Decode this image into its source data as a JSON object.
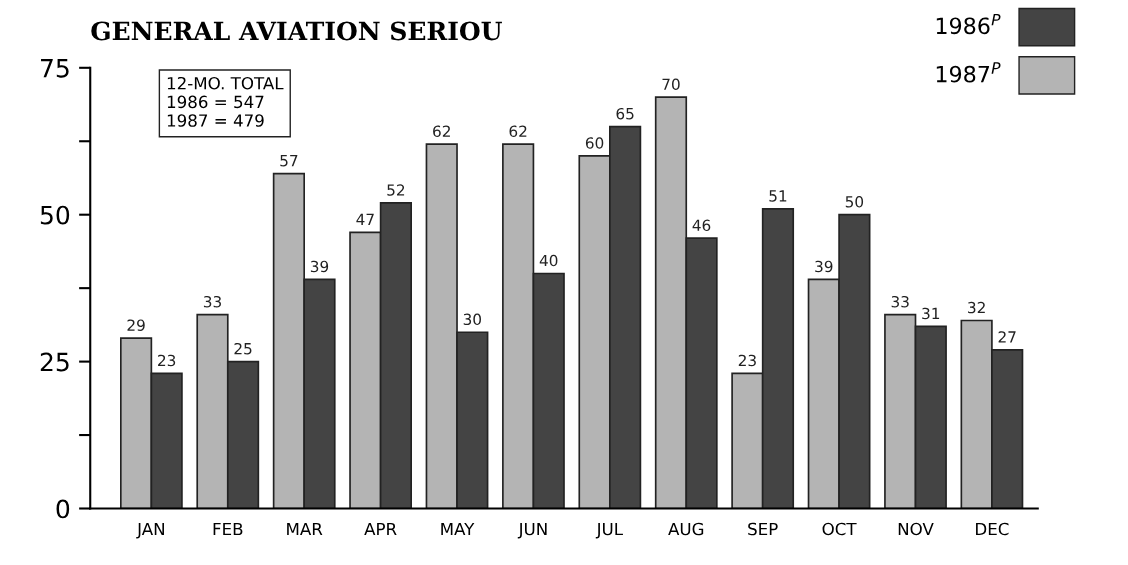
{
  "chart_data": {
    "type": "bar",
    "title": "GENERAL AVIATION SERIOU",
    "categories": [
      "JAN",
      "FEB",
      "MAR",
      "APR",
      "MAY",
      "JUN",
      "JUL",
      "AUG",
      "SEP",
      "OCT",
      "NOV",
      "DEC"
    ],
    "series": [
      {
        "name": "1987$^{P}$",
        "color": "#b4b4b4",
        "values": [
          29,
          33,
          57,
          47,
          62,
          62,
          60,
          70,
          23,
          39,
          33,
          32
        ]
      },
      {
        "name": "1986$^{P}$",
        "color": "#444444",
        "values": [
          23,
          25,
          39,
          52,
          30,
          40,
          65,
          46,
          51,
          50,
          31,
          27
        ]
      }
    ],
    "ylim": [
      0,
      75
    ],
    "yticks": [
      0,
      {
        "value": 12.5,
        "label": null
      },
      25,
      {
        "value": 37.5,
        "label": null
      },
      50,
      {
        "value": 62.5,
        "label": null
      },
      75
    ],
    "annotations": [
      "12-MO. TOTAL\n1986 = 547\n1987 = 479"
    ],
    "data_labels": true,
    "legend": "top right",
    "grid": false
  }
}
